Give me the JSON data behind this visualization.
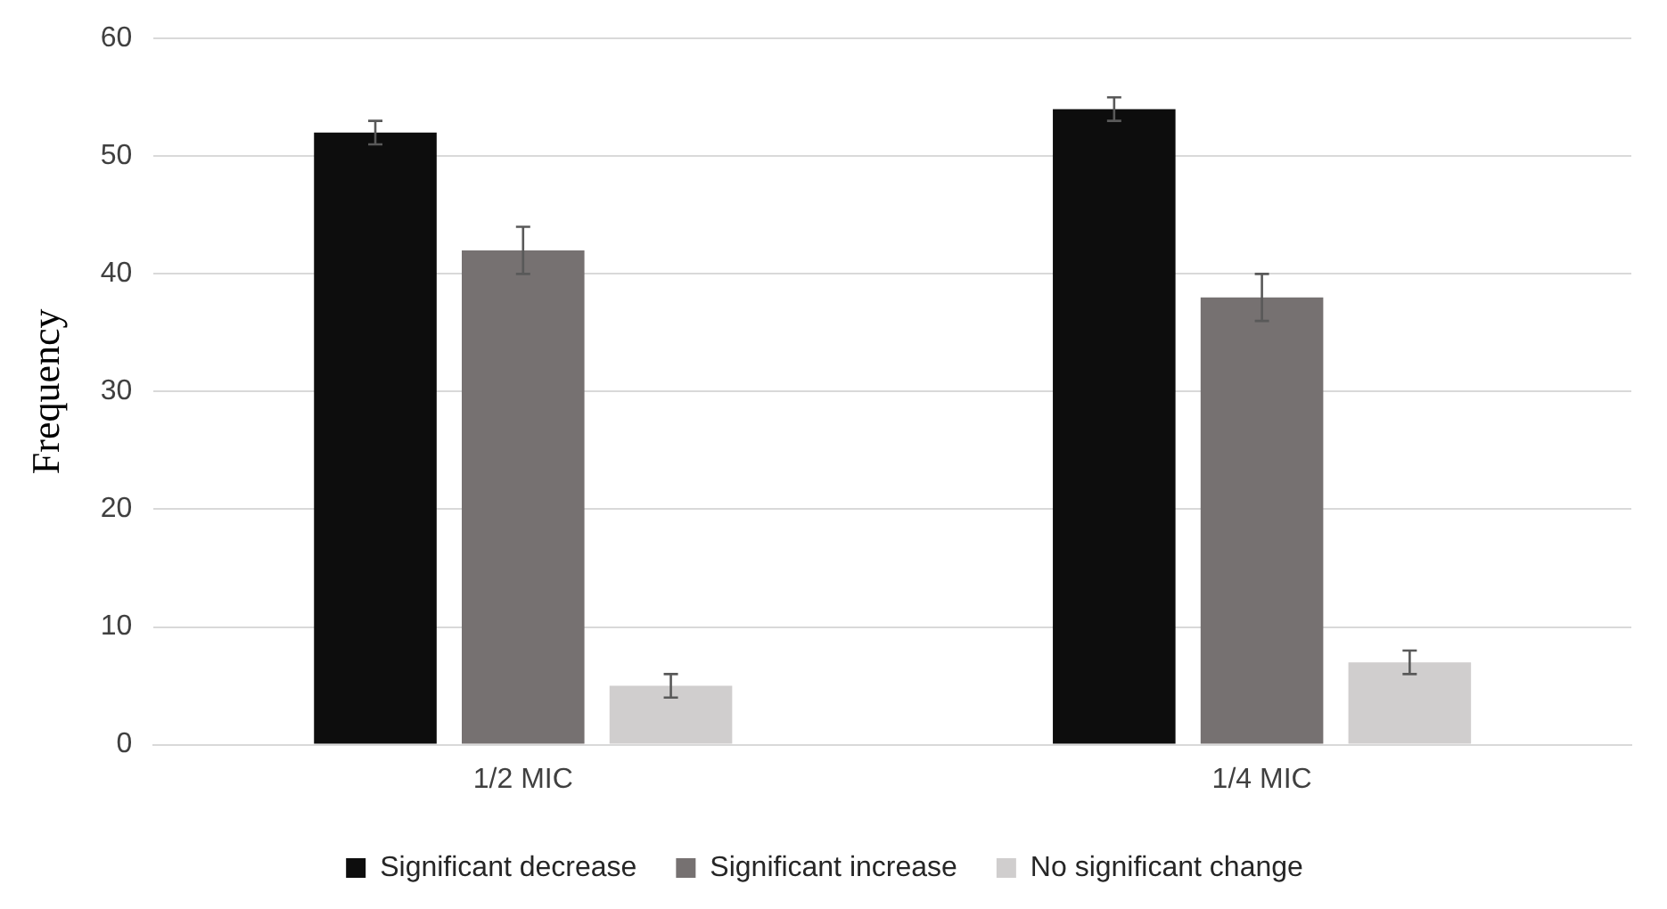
{
  "chart_data": {
    "type": "bar",
    "ylabel": "Frequency",
    "categories": [
      "1/2 MIC",
      "1/4 MIC"
    ],
    "series": [
      {
        "name": "Significant decrease",
        "color": "#0d0d0d",
        "values": [
          52,
          54
        ],
        "errors": [
          1,
          1
        ]
      },
      {
        "name": "Significant increase",
        "color": "#767171",
        "values": [
          42,
          38
        ],
        "errors": [
          2,
          2
        ]
      },
      {
        "name": "No significant change",
        "color": "#d0cece",
        "values": [
          5,
          7
        ],
        "errors": [
          1,
          1
        ]
      }
    ],
    "ylim": [
      0,
      60
    ],
    "yticks": [
      0,
      10,
      20,
      30,
      40,
      50,
      60
    ],
    "grid": "y",
    "legend": "bottom"
  }
}
